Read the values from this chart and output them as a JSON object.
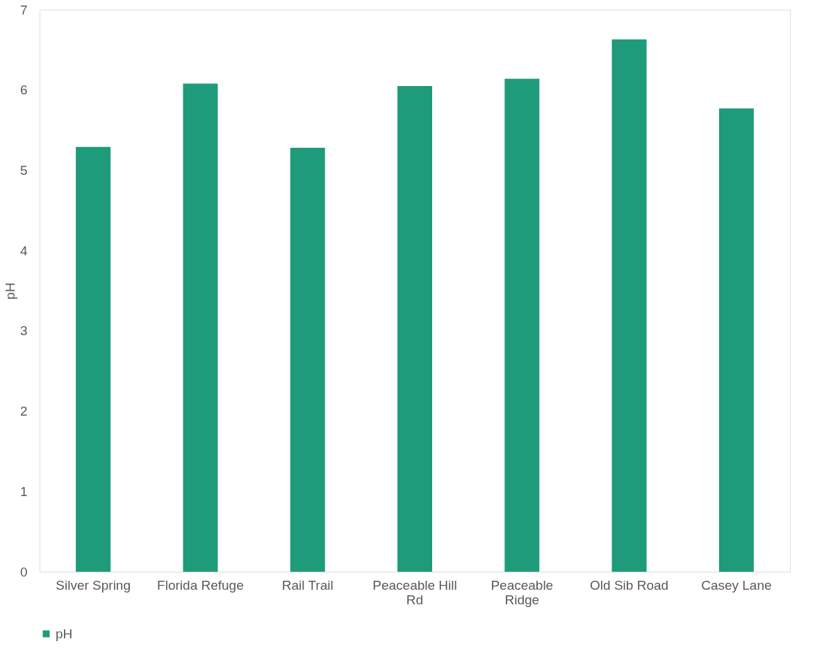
{
  "chart_data": {
    "type": "bar",
    "ylabel": "pH",
    "categories": [
      "Silver Spring",
      "Florida Refuge",
      "Rail Trail",
      "Peaceable Hill Rd",
      "Peaceable Ridge",
      "Old Sib Road",
      "Casey Lane"
    ],
    "series": [
      {
        "name": "pH",
        "color": "#1e9b7a",
        "values": [
          5.29,
          6.08,
          5.28,
          6.05,
          6.14,
          6.63,
          5.77
        ]
      }
    ],
    "ylim": [
      0,
      7
    ],
    "yticks": [
      0,
      1,
      2,
      3,
      4,
      5,
      6,
      7
    ],
    "grid": false,
    "legend": "bottom"
  }
}
